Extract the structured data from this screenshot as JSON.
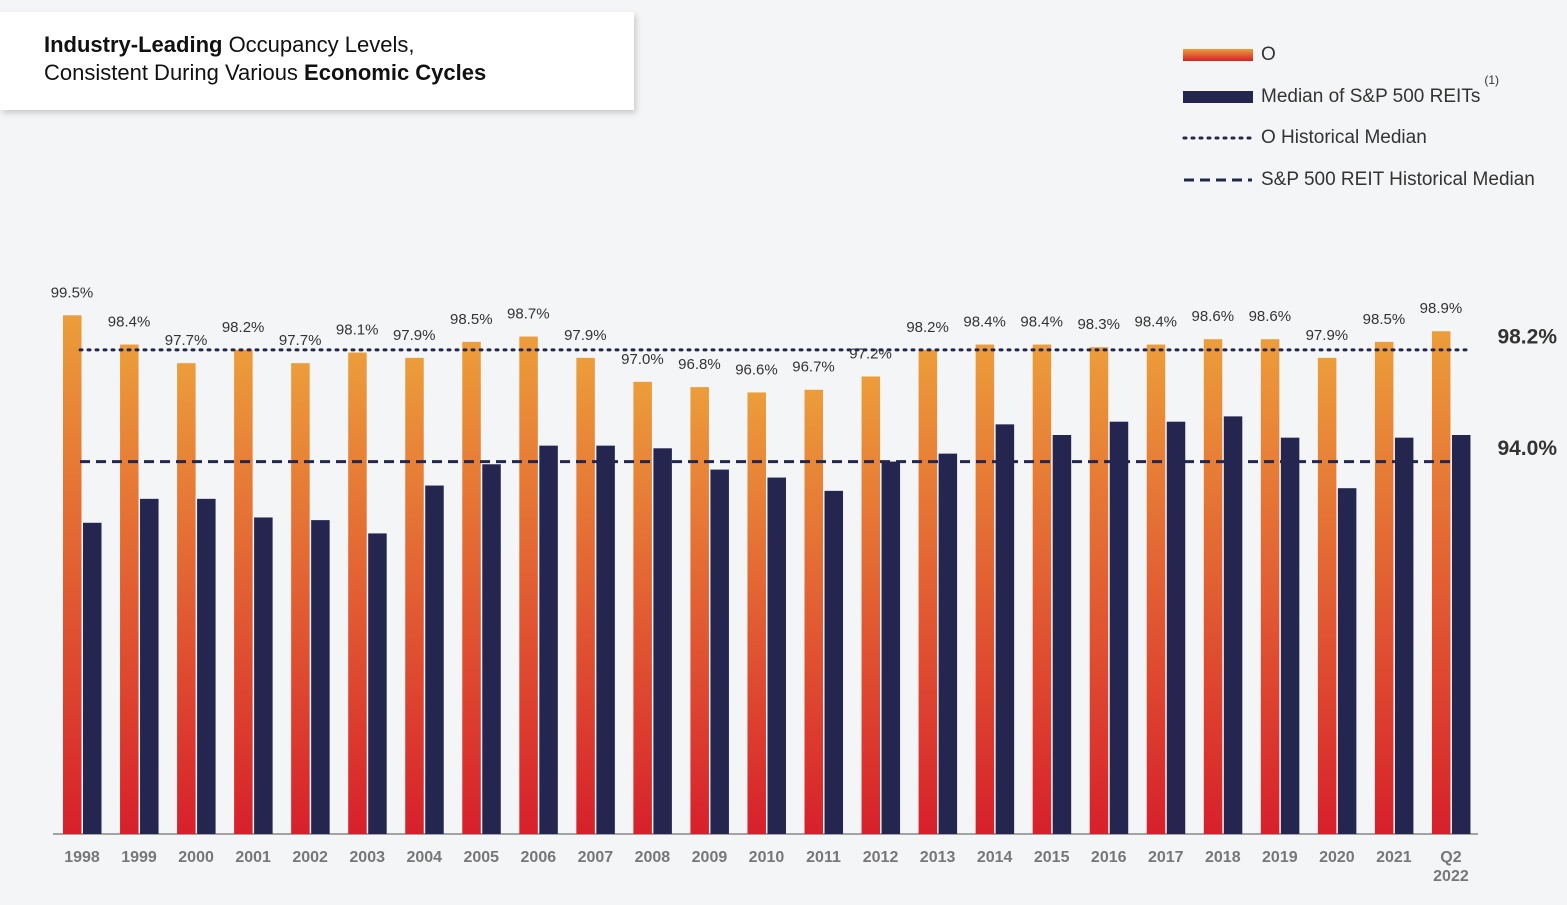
{
  "chart_data": {
    "type": "bar",
    "title_lines": [
      [
        {
          "text": "Industry-Leading",
          "bold": true
        },
        {
          "text": " Occupancy Levels,",
          "bold": false
        }
      ],
      [
        {
          "text": "Consistent During Various ",
          "bold": false
        },
        {
          "text": "Economic Cycles",
          "bold": true
        }
      ]
    ],
    "categories": [
      "1998",
      "1999",
      "2000",
      "2001",
      "2002",
      "2003",
      "2004",
      "2005",
      "2006",
      "2007",
      "2008",
      "2009",
      "2010",
      "2011",
      "2012",
      "2013",
      "2014",
      "2015",
      "2016",
      "2017",
      "2018",
      "2019",
      "2020",
      "2021",
      "Q2\n2022"
    ],
    "series": [
      {
        "name": "O",
        "color": "#e8963a",
        "gradient": [
          "#ec9d3a",
          "#d7202b"
        ],
        "values": [
          99.5,
          98.4,
          97.7,
          98.2,
          97.7,
          98.1,
          97.9,
          98.5,
          98.7,
          97.9,
          97.0,
          96.8,
          96.6,
          96.7,
          97.2,
          98.2,
          98.4,
          98.4,
          98.3,
          98.4,
          98.6,
          98.6,
          97.9,
          98.5,
          98.9
        ],
        "value_labels": [
          "99.5%",
          "98.4%",
          "97.7%",
          "98.2%",
          "97.7%",
          "98.1%",
          "97.9%",
          "98.5%",
          "98.7%",
          "97.9%",
          "97.0%",
          "96.8%",
          "96.6%",
          "96.7%",
          "97.2%",
          "98.2%",
          "98.4%",
          "98.4%",
          "98.3%",
          "98.4%",
          "98.6%",
          "98.6%",
          "97.9%",
          "98.5%",
          "98.9%"
        ]
      },
      {
        "name": "Median of S&P 500 REITs",
        "footnote_mark": "(1)",
        "color": "#25264f",
        "values": [
          91.7,
          92.6,
          92.6,
          91.9,
          91.8,
          91.3,
          93.1,
          93.9,
          94.6,
          94.6,
          94.5,
          93.7,
          93.4,
          92.9,
          94.0,
          94.3,
          95.4,
          95.0,
          95.5,
          95.5,
          95.7,
          94.9,
          93.0,
          94.9,
          95.0
        ]
      }
    ],
    "reference_lines": [
      {
        "name": "O Historical Median",
        "value": 98.2,
        "label": "98.2%",
        "style": "dotted",
        "color": "#25264f"
      },
      {
        "name": "S&P 500 REIT Historical Median",
        "value": 94.0,
        "label": "94.0%",
        "style": "dashed",
        "color": "#25264f"
      }
    ],
    "ylim": [
      80,
      100
    ]
  }
}
